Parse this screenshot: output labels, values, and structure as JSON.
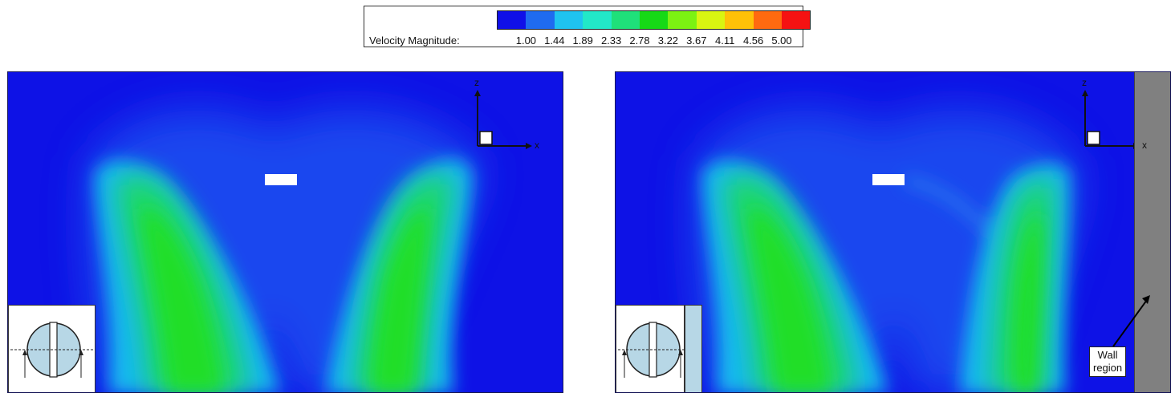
{
  "legend": {
    "label": "Velocity Magnitude:",
    "ticks": [
      "1.00",
      "1.44",
      "1.89",
      "2.33",
      "2.78",
      "3.22",
      "3.67",
      "4.11",
      "4.56",
      "5.00"
    ],
    "colors": [
      "#1010e8",
      "#1f6bf0",
      "#1fc3f0",
      "#22e8c8",
      "#1fe07a",
      "#16d916",
      "#7cf212",
      "#d9f511",
      "#ffc108",
      "#ff6a10",
      "#f51212"
    ]
  },
  "colors": {
    "background_flow": "#0e12e6",
    "wall": "#808080",
    "inset_cylinder": "#b7d7e6"
  },
  "panels": [
    {
      "axis_x": "x",
      "axis_z": "z"
    },
    {
      "axis_x": "x",
      "axis_z": "z",
      "wall_label": "Wall\nregion"
    }
  ]
}
